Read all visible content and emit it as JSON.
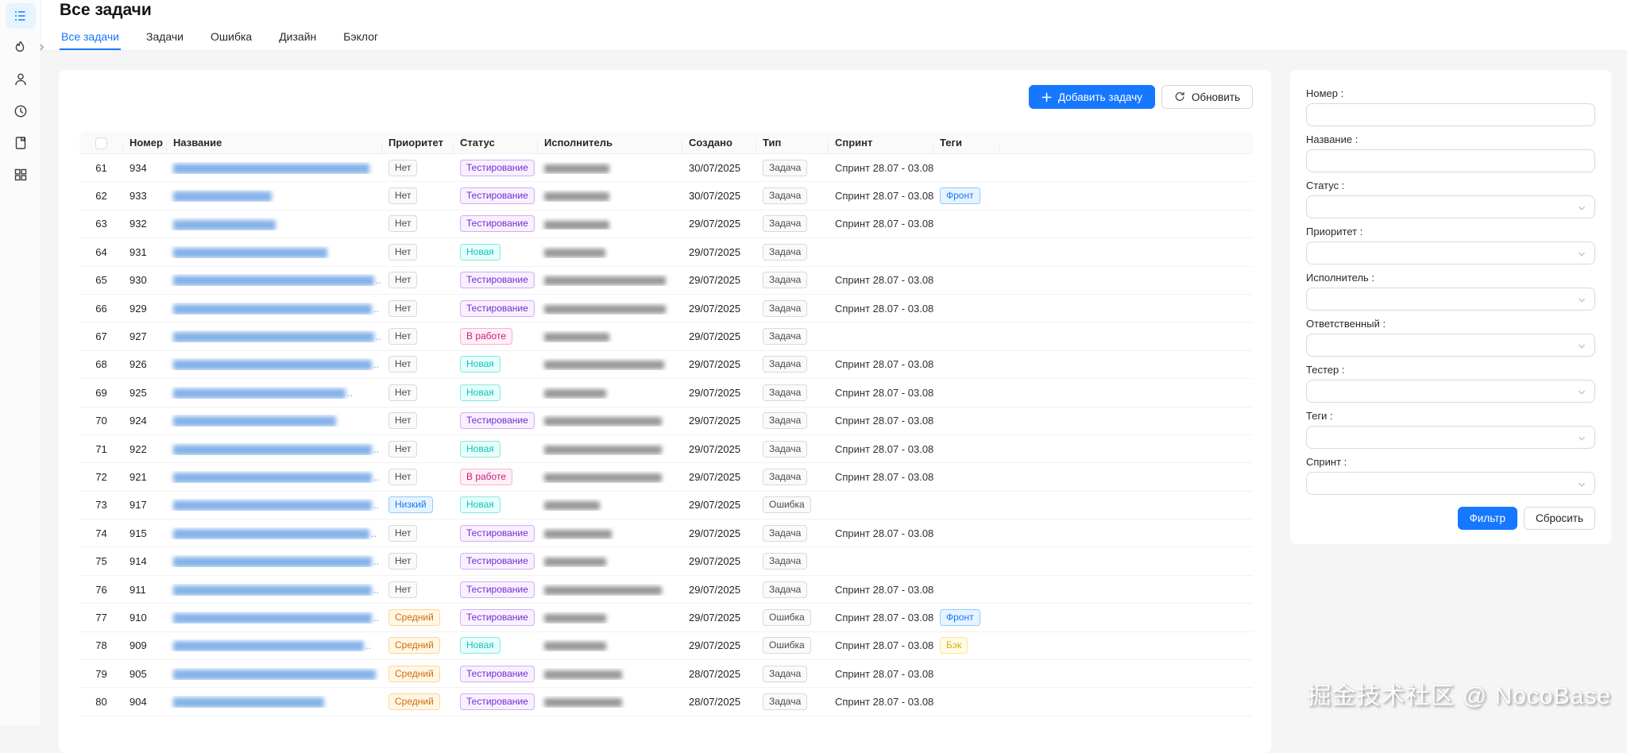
{
  "header": {
    "title": "Все задачи"
  },
  "sidebar": {
    "items": [
      {
        "icon": "task-list-icon",
        "active": true
      },
      {
        "icon": "flame-icon",
        "active": false
      },
      {
        "icon": "user-icon",
        "active": false
      },
      {
        "icon": "clock-icon",
        "active": false
      },
      {
        "icon": "bookmark-icon",
        "active": false
      },
      {
        "icon": "apps-icon",
        "active": false
      }
    ],
    "collapse_icon": "chevron-right-icon"
  },
  "tabs": [
    {
      "label": "Все задачи",
      "active": true
    },
    {
      "label": "Задачи",
      "active": false
    },
    {
      "label": "Ошибка",
      "active": false
    },
    {
      "label": "Дизайн",
      "active": false
    },
    {
      "label": "Бэклог",
      "active": false
    }
  ],
  "toolbar": {
    "add_label": "Добавить задачу",
    "refresh_label": "Обновить"
  },
  "table": {
    "columns": [
      {
        "key": "sel",
        "label": ""
      },
      {
        "key": "num",
        "label": "Номер"
      },
      {
        "key": "title",
        "label": "Название"
      },
      {
        "key": "priority",
        "label": "Приоритет"
      },
      {
        "key": "status",
        "label": "Статус"
      },
      {
        "key": "assignee",
        "label": "Исполнитель"
      },
      {
        "key": "created",
        "label": "Создано"
      },
      {
        "key": "type",
        "label": "Тип"
      },
      {
        "key": "sprint",
        "label": "Спринт"
      },
      {
        "key": "tags",
        "label": "Теги"
      },
      {
        "key": "extra",
        "label": ""
      }
    ],
    "rows": [
      {
        "index": 61,
        "number": 934,
        "title_w": 247,
        "ellipsis": false,
        "priority": "Нет",
        "status": "Тестирование",
        "assignee_w": 82,
        "created": "30/07/2025",
        "type": "Задача",
        "sprint": "Спринт 28.07 - 03.08",
        "tags": []
      },
      {
        "index": 62,
        "number": 933,
        "title_w": 124,
        "ellipsis": false,
        "priority": "Нет",
        "status": "Тестирование",
        "assignee_w": 82,
        "created": "30/07/2025",
        "type": "Задача",
        "sprint": "Спринт 28.07 - 03.08",
        "tags": [
          "Фронт"
        ]
      },
      {
        "index": 63,
        "number": 932,
        "title_w": 129,
        "ellipsis": false,
        "priority": "Нет",
        "status": "Тестирование",
        "assignee_w": 82,
        "created": "29/07/2025",
        "type": "Задача",
        "sprint": "Спринт 28.07 - 03.08",
        "tags": []
      },
      {
        "index": 64,
        "number": 931,
        "title_w": 194,
        "ellipsis": false,
        "priority": "Нет",
        "status": "Новая",
        "assignee_w": 77,
        "created": "29/07/2025",
        "type": "Задача",
        "sprint": "",
        "tags": []
      },
      {
        "index": 65,
        "number": 930,
        "title_w": 253,
        "ellipsis": true,
        "priority": "Нет",
        "status": "Тестирование",
        "assignee_w": 153,
        "created": "29/07/2025",
        "type": "Задача",
        "sprint": "Спринт 28.07 - 03.08",
        "tags": []
      },
      {
        "index": 66,
        "number": 929,
        "title_w": 250,
        "ellipsis": true,
        "priority": "Нет",
        "status": "Тестирование",
        "assignee_w": 153,
        "created": "29/07/2025",
        "type": "Задача",
        "sprint": "Спринт 28.07 - 03.08",
        "tags": []
      },
      {
        "index": 67,
        "number": 927,
        "title_w": 253,
        "ellipsis": true,
        "priority": "Нет",
        "status": "В работе",
        "assignee_w": 82,
        "created": "29/07/2025",
        "type": "Задача",
        "sprint": "",
        "tags": []
      },
      {
        "index": 68,
        "number": 926,
        "title_w": 250,
        "ellipsis": true,
        "priority": "Нет",
        "status": "Новая",
        "assignee_w": 151,
        "created": "29/07/2025",
        "type": "Задача",
        "sprint": "Спринт 28.07 - 03.08",
        "tags": []
      },
      {
        "index": 69,
        "number": 925,
        "title_w": 217,
        "ellipsis": true,
        "priority": "Нет",
        "status": "Новая",
        "assignee_w": 78,
        "created": "29/07/2025",
        "type": "Задача",
        "sprint": "Спринт 28.07 - 03.08",
        "tags": []
      },
      {
        "index": 70,
        "number": 924,
        "title_w": 205,
        "ellipsis": false,
        "priority": "Нет",
        "status": "Тестирование",
        "assignee_w": 148,
        "created": "29/07/2025",
        "type": "Задача",
        "sprint": "Спринт 28.07 - 03.08",
        "tags": []
      },
      {
        "index": 71,
        "number": 922,
        "title_w": 250,
        "ellipsis": true,
        "priority": "Нет",
        "status": "Новая",
        "assignee_w": 148,
        "created": "29/07/2025",
        "type": "Задача",
        "sprint": "Спринт 28.07 - 03.08",
        "tags": []
      },
      {
        "index": 72,
        "number": 921,
        "title_w": 250,
        "ellipsis": true,
        "priority": "Нет",
        "status": "В работе",
        "assignee_w": 148,
        "created": "29/07/2025",
        "type": "Задача",
        "sprint": "Спринт 28.07 - 03.08",
        "tags": []
      },
      {
        "index": 73,
        "number": 917,
        "title_w": 250,
        "ellipsis": true,
        "priority": "Низкий",
        "status": "Новая",
        "assignee_w": 70,
        "created": "29/07/2025",
        "type": "Ошибка",
        "sprint": "",
        "tags": []
      },
      {
        "index": 74,
        "number": 915,
        "title_w": 247,
        "ellipsis": true,
        "priority": "Нет",
        "status": "Тестирование",
        "assignee_w": 85,
        "created": "29/07/2025",
        "type": "Задача",
        "sprint": "Спринт 28.07 - 03.08",
        "tags": []
      },
      {
        "index": 75,
        "number": 914,
        "title_w": 250,
        "ellipsis": true,
        "priority": "Нет",
        "status": "Тестирование",
        "assignee_w": 78,
        "created": "29/07/2025",
        "type": "Задача",
        "sprint": "",
        "tags": []
      },
      {
        "index": 76,
        "number": 911,
        "title_w": 250,
        "ellipsis": true,
        "priority": "Нет",
        "status": "Тестирование",
        "assignee_w": 148,
        "created": "29/07/2025",
        "type": "Задача",
        "sprint": "Спринт 28.07 - 03.08",
        "tags": []
      },
      {
        "index": 77,
        "number": 910,
        "title_w": 250,
        "ellipsis": true,
        "priority": "Средний",
        "status": "Тестирование",
        "assignee_w": 78,
        "created": "29/07/2025",
        "type": "Ошибка",
        "sprint": "Спринт 28.07 - 03.08",
        "tags": [
          "Фронт"
        ]
      },
      {
        "index": 78,
        "number": 909,
        "title_w": 240,
        "ellipsis": true,
        "priority": "Средний",
        "status": "Новая",
        "assignee_w": 78,
        "created": "29/07/2025",
        "type": "Ошибка",
        "sprint": "Спринт 28.07 - 03.08",
        "tags": [
          "Бэк"
        ]
      },
      {
        "index": 79,
        "number": 905,
        "title_w": 255,
        "ellipsis": false,
        "priority": "Средний",
        "status": "Тестирование",
        "assignee_w": 98,
        "created": "28/07/2025",
        "type": "Задача",
        "sprint": "Спринт 28.07 - 03.08",
        "tags": []
      },
      {
        "index": 80,
        "number": 904,
        "title_w": 190,
        "ellipsis": false,
        "priority": "Средний",
        "status": "Тестирование",
        "assignee_w": 98,
        "created": "28/07/2025",
        "type": "Задача",
        "sprint": "Спринт 28.07 - 03.08",
        "tags": []
      }
    ]
  },
  "filter": {
    "fields": [
      {
        "key": "number",
        "label": "Номер :",
        "type": "input"
      },
      {
        "key": "name",
        "label": "Название :",
        "type": "input"
      },
      {
        "key": "status",
        "label": "Статус :",
        "type": "select"
      },
      {
        "key": "priority",
        "label": "Приоритет :",
        "type": "select"
      },
      {
        "key": "assignee",
        "label": "Исполнитель :",
        "type": "select"
      },
      {
        "key": "responsible",
        "label": "Ответственный :",
        "type": "select"
      },
      {
        "key": "tester",
        "label": "Тестер :",
        "type": "select"
      },
      {
        "key": "tags",
        "label": "Теги :",
        "type": "select"
      },
      {
        "key": "sprint",
        "label": "Спринт :",
        "type": "select"
      }
    ],
    "submit_label": "Фильтр",
    "reset_label": "Сбросить"
  },
  "watermark": {
    "text": "掘金技术社区 @ NocoBase"
  },
  "colors": {
    "accent": "#1677ff",
    "page_bg": "#f5f5f5",
    "card_bg": "#ffffff"
  },
  "tag_palettes": {
    "default": {
      "bg": "#fafafa",
      "border": "#d9d9d9",
      "text": "#4b4b4b"
    },
    "blue": {
      "bg": "#e6f4ff",
      "border": "#91caff",
      "text": "#1677ff"
    },
    "orange": {
      "bg": "#fff7e6",
      "border": "#ffd591",
      "text": "#d46b08"
    },
    "purple": {
      "bg": "#f9f0ff",
      "border": "#d3adf7",
      "text": "#722ed1"
    },
    "cyan": {
      "bg": "#e6fffb",
      "border": "#87e8de",
      "text": "#13c2c2"
    },
    "magenta": {
      "bg": "#fff0f6",
      "border": "#ffadd2",
      "text": "#c41d7f"
    },
    "gold": {
      "bg": "#fffbe6",
      "border": "#ffe58f",
      "text": "#d4b106"
    }
  },
  "tag_style_map": {
    "Нет": "default",
    "Низкий": "blue",
    "Средний": "orange",
    "Тестирование": "purple",
    "Новая": "cyan",
    "В работе": "magenta",
    "Задача": "default",
    "Ошибка": "default",
    "Фронт": "blue",
    "Бэк": "gold"
  }
}
